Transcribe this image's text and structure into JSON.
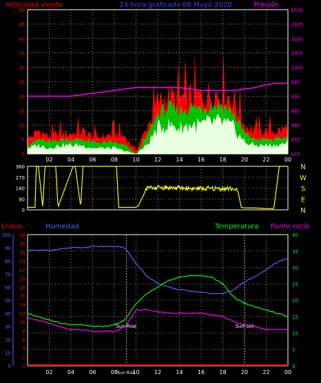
{
  "header": {
    "wind_label": "Velocidad viento",
    "title": "24 hora graficado  06 Mayo 2020",
    "pressure_label": "Presión"
  },
  "colors": {
    "wind": "#ff0000",
    "gust_fill": "#ff0000",
    "avg_fill": "#00c000",
    "min_fill": "#e8ffe0",
    "pressure": "#ff00ff",
    "direction": "#ffff00",
    "humidity": "#6060ff",
    "temperature": "#00ff00",
    "dewpoint": "#ff00ff",
    "rain": "#ff0000",
    "grid": "#ffffff",
    "frame": "#ffffff",
    "title": "#4040ff"
  },
  "chart_data": [
    {
      "type": "area",
      "title": "24 hora graficado  06 Mayo 2020",
      "ylabel": "Velocidad viento",
      "y2label": "Presión",
      "x_ticks": [
        "02",
        "04",
        "06",
        "08",
        "10",
        "12",
        "14",
        "16",
        "18",
        "20",
        "22",
        "00"
      ],
      "ylim": [
        0,
        50
      ],
      "y_ticks": [
        0,
        5,
        10,
        15,
        20,
        25,
        30,
        35,
        40,
        45,
        50
      ],
      "y2lim": [
        970,
        1020
      ],
      "y2_ticks": [
        970,
        975,
        980,
        985,
        990,
        995,
        1000,
        1005,
        1010,
        1015,
        1020
      ],
      "x_hours": [
        0,
        1,
        2,
        3,
        4,
        5,
        6,
        7,
        8,
        9,
        10,
        11,
        12,
        13,
        14,
        15,
        16,
        17,
        18,
        19,
        20,
        21,
        22,
        23,
        24
      ],
      "series": [
        {
          "values": [
            5,
            8,
            6,
            7,
            7,
            8,
            6,
            6,
            7,
            6,
            1,
            9,
            18,
            20,
            19,
            20,
            20,
            21,
            21,
            19,
            10,
            8,
            8,
            8,
            9
          ]
        },
        {
          "values": [
            3,
            5,
            4,
            5,
            5,
            5,
            4,
            4,
            4,
            3,
            0,
            6,
            14,
            16,
            15,
            16,
            16,
            17,
            17,
            14,
            7,
            5,
            5,
            5,
            6
          ]
        },
        {
          "values": [
            2,
            3,
            2,
            3,
            3,
            3,
            2,
            2,
            2,
            1,
            0,
            3,
            9,
            10,
            9,
            10,
            10,
            11,
            11,
            9,
            4,
            3,
            3,
            3,
            4
          ]
        }
      ],
      "pressure": [
        990,
        990,
        990,
        990,
        990,
        990.5,
        991,
        991.5,
        992,
        992.5,
        993,
        993,
        993,
        993,
        993,
        992.5,
        992,
        992,
        992,
        992,
        992.5,
        993,
        994,
        994.5,
        994.5
      ]
    },
    {
      "type": "line",
      "y_ticks": [
        0,
        90,
        180,
        270,
        360
      ],
      "ylim": [
        0,
        360
      ],
      "compass": [
        "N",
        "W",
        "S",
        "E",
        "N"
      ],
      "x_hours": [
        0,
        0.7,
        0.8,
        1.0,
        1.4,
        1.6,
        2.6,
        2.8,
        4.2,
        4.4,
        4.9,
        5.1,
        8.2,
        8.4,
        9.9,
        10.2,
        11,
        12,
        14,
        16,
        18,
        19,
        19.4,
        19.7,
        20,
        21,
        22,
        22.7,
        23.2,
        23.4,
        24
      ],
      "values": [
        20,
        20,
        360,
        360,
        20,
        360,
        360,
        20,
        360,
        360,
        20,
        360,
        360,
        20,
        20,
        30,
        180,
        185,
        180,
        175,
        175,
        175,
        150,
        20,
        15,
        15,
        10,
        10,
        360,
        360,
        360
      ]
    },
    {
      "type": "line",
      "x_ticks": [
        "02",
        "04",
        "06",
        "08",
        "Sun Rise",
        "10",
        "12",
        "14",
        "16",
        "18",
        "20",
        "22",
        "00"
      ],
      "annotations": [
        "Sun Rise",
        "Sun Set"
      ],
      "lluvia_label": "Lluvia",
      "humedad_label": "Humedad",
      "temperatura_label": "Temperatura",
      "rocio_label": "Punto rocío",
      "humidity_ticks": [
        0,
        10,
        20,
        30,
        40,
        50,
        60,
        70,
        80,
        90,
        100
      ],
      "rain_ticks": [
        0,
        2,
        4,
        6,
        8,
        10,
        12,
        14,
        16,
        18,
        20,
        22,
        24,
        26,
        28,
        30
      ],
      "temp_ticks": [
        0,
        5,
        10,
        15,
        20,
        25,
        30,
        35,
        40
      ],
      "ylim_humidity": [
        0,
        100
      ],
      "ylim_rain": [
        0,
        30
      ],
      "ylim_temp": [
        0,
        40
      ],
      "x_hours": [
        0,
        1,
        2,
        3,
        4,
        5,
        6,
        7,
        8,
        9,
        10,
        11,
        12,
        13,
        14,
        15,
        16,
        17,
        18,
        19,
        20,
        21,
        22,
        23,
        24
      ],
      "series": [
        {
          "name": "Humedad",
          "values": [
            88,
            88,
            88,
            89,
            90,
            90,
            91,
            91,
            91,
            90,
            78,
            68,
            63,
            60,
            58,
            57,
            56,
            55,
            55,
            58,
            64,
            68,
            73,
            79,
            82
          ]
        },
        {
          "name": "Temperatura",
          "values": [
            16,
            15,
            14,
            13,
            12.5,
            12.5,
            12,
            12,
            12.5,
            14,
            19,
            22,
            24,
            26,
            27,
            27.5,
            27.5,
            27,
            25,
            21,
            19,
            18,
            17,
            16,
            15
          ]
        },
        {
          "name": "Punto rocío",
          "values": [
            14.5,
            14,
            13,
            12,
            11,
            11,
            10.5,
            10.5,
            10.5,
            12,
            17,
            17,
            16.5,
            16,
            16,
            16,
            16,
            15.5,
            15,
            13.5,
            12.5,
            12,
            11,
            11,
            11
          ]
        },
        {
          "name": "Lluvia",
          "values": [
            0,
            0,
            0,
            0,
            0,
            0,
            0,
            0,
            0,
            0,
            0,
            0,
            0,
            0,
            0,
            0,
            0,
            0,
            0,
            0,
            0,
            0,
            0,
            0,
            0
          ]
        }
      ]
    }
  ]
}
